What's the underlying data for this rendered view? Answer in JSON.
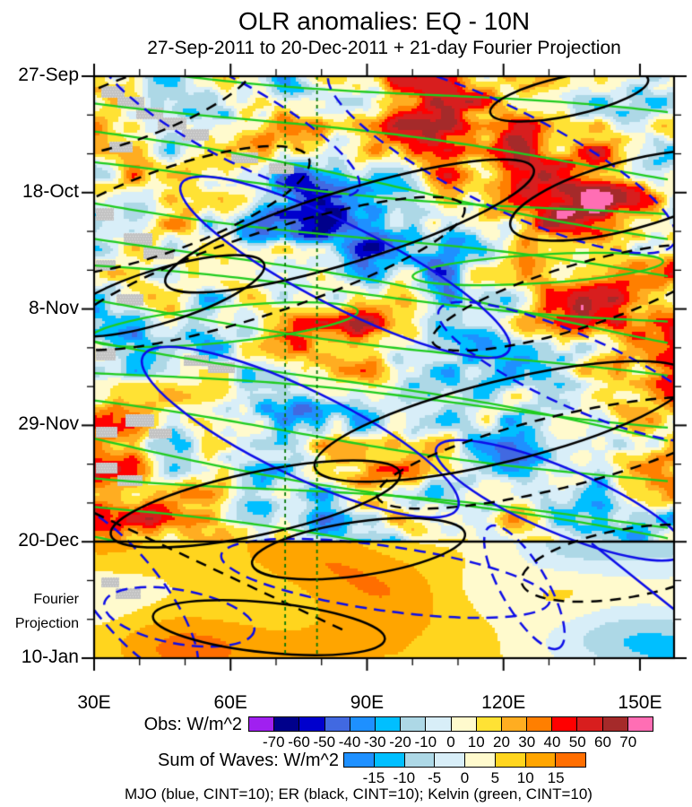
{
  "header": {
    "title": "OLR anomalies: EQ - 10N",
    "subtitle": "27-Sep-2011 to 20-Dec-2011 + 21-day Fourier Projection"
  },
  "chart_data": {
    "type": "heatmap",
    "variant": "hovmoller longitude-time filled-contour plot",
    "title": "OLR anomalies: EQ - 10N",
    "subtitle": "27-Sep-2011 to 20-Dec-2011 + 21-day Fourier Projection",
    "x_axis": {
      "ticks": [
        {
          "label": "30E",
          "deg": 30
        },
        {
          "label": "60E",
          "deg": 60
        },
        {
          "label": "90E",
          "deg": 90
        },
        {
          "label": "120E",
          "deg": 120
        },
        {
          "label": "150E",
          "deg": 150
        }
      ],
      "minor_tick_step_deg": 10,
      "range_deg_east": [
        30,
        157.5
      ]
    },
    "y_axis": {
      "direction": "time increases downward",
      "ticks": [
        {
          "label": "27-Sep",
          "day": 0
        },
        {
          "label": "18-Oct",
          "day": 21
        },
        {
          "label": "8-Nov",
          "day": 42
        },
        {
          "label": "29-Nov",
          "day": 63
        },
        {
          "label": "20-Dec",
          "day": 84
        },
        {
          "label": "10-Jan",
          "day": 105
        }
      ],
      "minor_tick_step_days": 7,
      "annotation": [
        "Fourier",
        "Projection"
      ]
    },
    "regions": {
      "observed": "27-Sep-2011 to 20-Dec-2011: observed OLR anomalies (Obs palette, mottled field)",
      "projection": "20-Dec-2011 to 10-Jan-2012: 21-day Fourier Projection (smooth Sum-of-Waves palette)"
    },
    "obs_levels_w_m2": [
      -70,
      -60,
      -50,
      -40,
      -30,
      -20,
      -10,
      0,
      10,
      20,
      30,
      40,
      50,
      60,
      70
    ],
    "waves_levels_w_m2": [
      -15,
      -10,
      -5,
      0,
      5,
      10,
      15
    ],
    "overlay_contours": [
      {
        "name": "MJO",
        "color": "blue",
        "hex": "#0D0DE8",
        "cint": 10,
        "tilt": "eastward (down-right), solid positive / dashed negative"
      },
      {
        "name": "ER",
        "color": "black",
        "hex": "#000000",
        "cint": 10,
        "tilt": "westward (down-left) elongated ellipses"
      },
      {
        "name": "Kelvin",
        "color": "green",
        "hex": "#1FCC1F",
        "cint": 10,
        "tilt": "fast eastward shallow diagonals"
      }
    ],
    "reference_lines": {
      "vertical_dotted_green_longitudes_deg_e": [
        72,
        79
      ],
      "horizontal_black_line_date": "20-Dec"
    },
    "missing_data": {
      "color": "#C3C3C3",
      "note": "grey stippled blocks mainly near 30E-95E in observed period"
    },
    "notable_features": [
      "strong positive (red/brown) anomaly near 70-90E around mid-October",
      "strong negative (navy/purple) envelope near 65-95E from late October",
      "strong positive (red) anomaly near 80-95E in mid-November",
      "purple negative minimum near 70-85E around 29-Nov",
      "smooth pale-yellow/gold projection field after 20-Dec"
    ]
  },
  "colorbar_obs": {
    "label": "Obs: W/m^2",
    "tick_labels": [
      "-70",
      "-60",
      "-50",
      "-40",
      "-30",
      "-20",
      "-10",
      "0",
      "10",
      "20",
      "30",
      "40",
      "50",
      "60",
      "70"
    ],
    "colors": [
      "#A020F0",
      "#00008B",
      "#0000CD",
      "#4169E1",
      "#1E90FF",
      "#00BFFF",
      "#ADD8E6",
      "#D8EEF8",
      "#FFFACD",
      "#FFE234",
      "#FFAD21",
      "#FF7F00",
      "#FF0000",
      "#D81E1E",
      "#A52A2A",
      "#FF6EB4"
    ]
  },
  "colorbar_waves": {
    "label": "Sum of Waves: W/m^2",
    "tick_labels": [
      "-15",
      "-10",
      "-5",
      "0",
      "5",
      "10",
      "15"
    ],
    "colors": [
      "#1E90FF",
      "#00BFFF",
      "#ADD8E6",
      "#D8EEF8",
      "#FFFACD",
      "#FFD51E",
      "#FFA500",
      "#FF6E00"
    ]
  },
  "footnote": "MJO (blue, CINT=10); ER (black, CINT=10); Kelvin (green, CINT=10)"
}
